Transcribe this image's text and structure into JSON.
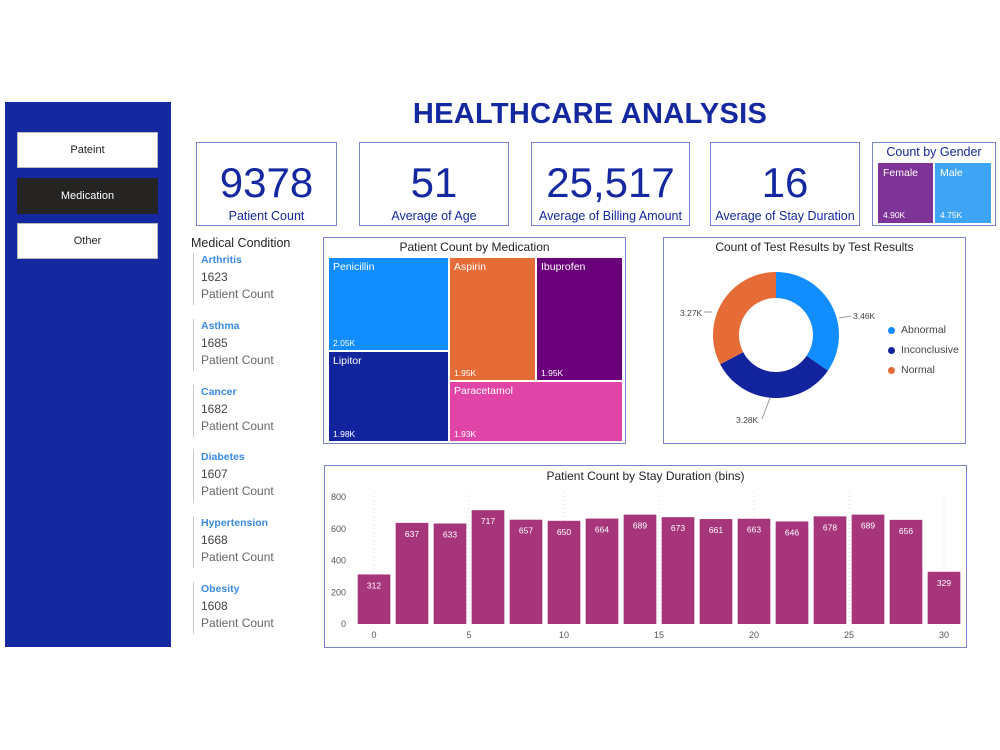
{
  "header": {
    "title": "HEALTHCARE ANALYSIS"
  },
  "sidebar": {
    "items": [
      {
        "label": "Pateint",
        "active": false
      },
      {
        "label": "Medication",
        "active": true
      },
      {
        "label": "Other",
        "active": false
      }
    ]
  },
  "kpis": [
    {
      "value": "9378",
      "label": "Patient Count"
    },
    {
      "value": "51",
      "label": "Average of Age"
    },
    {
      "value": "25,517",
      "label": "Average of Billing Amount"
    },
    {
      "value": "16",
      "label": "Average of Stay Duration"
    }
  ],
  "gender": {
    "title": "Count by Gender",
    "female": {
      "label": "Female",
      "value": "4.90K",
      "color": "#7e3396"
    },
    "male": {
      "label": "Male",
      "value": "4.75K",
      "color": "#3da5f4"
    }
  },
  "medical_condition": {
    "title": "Medical Condition",
    "items": [
      {
        "name": "Arthritis",
        "value": "1623",
        "label": "Patient Count"
      },
      {
        "name": "Asthma",
        "value": "1685",
        "label": "Patient Count"
      },
      {
        "name": "Cancer",
        "value": "1682",
        "label": "Patient Count"
      },
      {
        "name": "Diabetes",
        "value": "1607",
        "label": "Patient Count"
      },
      {
        "name": "Hypertension",
        "value": "1668",
        "label": "Patient Count"
      },
      {
        "name": "Obesity",
        "value": "1608",
        "label": "Patient Count"
      }
    ]
  },
  "medication_treemap": {
    "title": "Patient Count by Medication",
    "tiles": [
      {
        "name": "Penicillin",
        "value": "2.05K",
        "color": "#118dff"
      },
      {
        "name": "Lipitor",
        "value": "1.98K",
        "color": "#12239e"
      },
      {
        "name": "Aspirin",
        "value": "1.95K",
        "color": "#e66c37"
      },
      {
        "name": "Ibuprofen",
        "value": "1.95K",
        "color": "#6b007b"
      },
      {
        "name": "Paracetamol",
        "value": "1.93K",
        "color": "#e044a7"
      }
    ]
  },
  "test_results": {
    "title": "Count of Test Results by Test Results",
    "labels": {
      "abnormal": "3.46K",
      "inconclusive": "3.28K",
      "normal": "3.27K"
    },
    "legend": [
      {
        "name": "Abnormal",
        "color": "#118dff"
      },
      {
        "name": "Inconclusive",
        "color": "#12239e"
      },
      {
        "name": "Normal",
        "color": "#e66c37"
      }
    ]
  },
  "chart_data": [
    {
      "type": "pie",
      "title": "Count of Test Results by Test Results",
      "donut": true,
      "categories": [
        "Abnormal",
        "Inconclusive",
        "Normal"
      ],
      "values": [
        3460,
        3280,
        3270
      ],
      "colors": [
        "#118dff",
        "#12239e",
        "#e66c37"
      ],
      "legend": "right"
    },
    {
      "type": "bar",
      "title": "Patient Count by Stay Duration (bins)",
      "x": [
        0,
        2,
        4,
        6,
        8,
        10,
        12,
        14,
        16,
        18,
        20,
        22,
        24,
        26,
        28,
        30
      ],
      "values": [
        312,
        637,
        633,
        717,
        657,
        650,
        664,
        689,
        673,
        661,
        663,
        646,
        678,
        689,
        656,
        329
      ],
      "xticks": [
        0,
        5,
        10,
        15,
        20,
        25,
        30
      ],
      "yticks": [
        0,
        200,
        400,
        600,
        800
      ],
      "ylim": [
        0,
        800
      ],
      "color": "#a6357b",
      "grid": "vertical-dotted"
    }
  ]
}
